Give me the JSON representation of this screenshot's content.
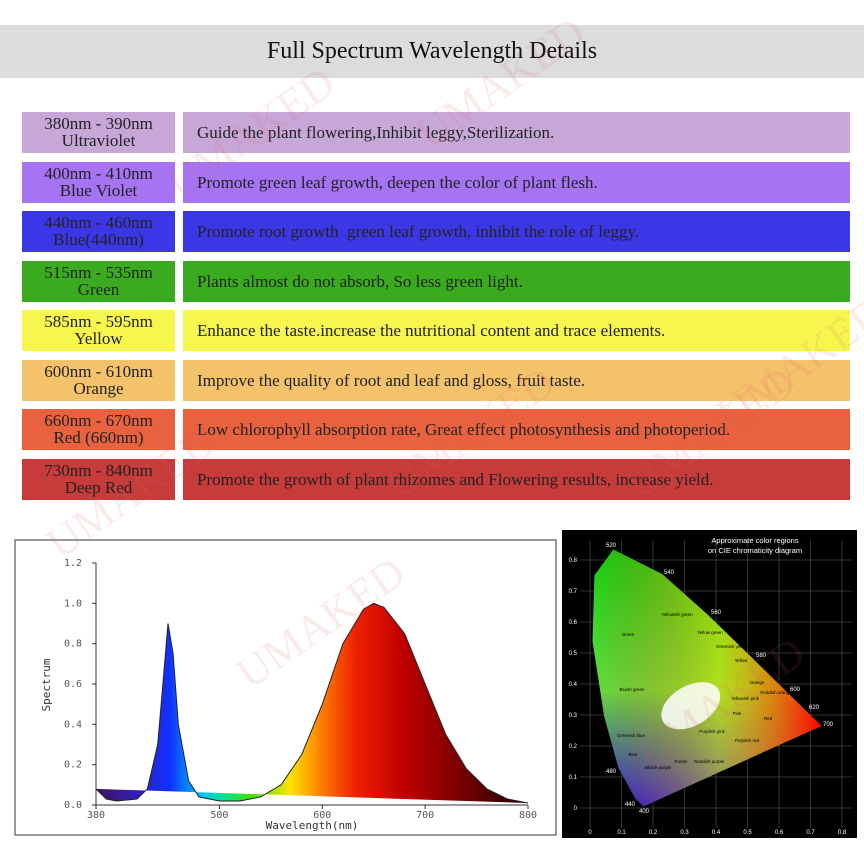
{
  "header": {
    "title": "Full Spectrum Wavelength Details"
  },
  "watermark": "UMAKED",
  "table": {
    "rows": [
      {
        "range": "380nm - 390nm",
        "name": "Ultraviolet",
        "description": "Guide the plant flowering,Inhibit leggy,Sterilization.",
        "color": "#c7a7d7"
      },
      {
        "range": "400nm - 410nm",
        "name": "Blue Violet",
        "description": "Promote green leaf growth, deepen the color of plant flesh.",
        "color": "#a673f2"
      },
      {
        "range": "440nm - 460nm",
        "name": "Blue(440nm)",
        "description": "Promote root growth  green leaf growth, inhibit the role of leggy.",
        "color": "#3c37e6"
      },
      {
        "range": "515nm - 535nm",
        "name": "Green",
        "description": "Plants almost do not absorb, So less green light.",
        "color": "#3aab1f"
      },
      {
        "range": "585nm - 595nm",
        "name": "Yellow",
        "description": "Enhance the taste.increase the nutritional content and trace elements.",
        "color": "#f6f64f"
      },
      {
        "range": "600nm - 610nm",
        "name": "Orange",
        "description": "Improve the quality of root and leaf and gloss, fruit taste.",
        "color": "#f5c26c"
      },
      {
        "range": "660nm - 670nm",
        "name": "Red (660nm)",
        "description": "Low chlorophyll absorption rate, Great effect photosynthesis and photoperiod.",
        "color": "#e8623f"
      },
      {
        "range": "730nm - 840nm",
        "name": "Deep Red",
        "description": "Promote the growth of plant rhizomes and Flowering results, increase yield.",
        "color": "#c83b3b"
      }
    ]
  },
  "chart_data": {
    "type": "line",
    "xlabel": "Wavelength(nm)",
    "ylabel": "Spectrum",
    "x": [
      380,
      390,
      400,
      420,
      430,
      440,
      445,
      450,
      455,
      460,
      470,
      480,
      500,
      520,
      540,
      560,
      580,
      600,
      620,
      640,
      650,
      660,
      680,
      700,
      720,
      740,
      760,
      780,
      800
    ],
    "values": [
      0.08,
      0.03,
      0.02,
      0.03,
      0.08,
      0.3,
      0.6,
      0.9,
      0.75,
      0.4,
      0.12,
      0.04,
      0.02,
      0.02,
      0.04,
      0.1,
      0.25,
      0.5,
      0.8,
      0.97,
      1.0,
      0.98,
      0.85,
      0.6,
      0.35,
      0.18,
      0.08,
      0.03,
      0.01
    ],
    "color": "#222222",
    "xlim": [
      380,
      800
    ],
    "ylim": [
      0,
      1.2
    ],
    "xticks": [
      380,
      500,
      600,
      700,
      800
    ],
    "yticks": [
      {
        "value": 0,
        "label": "0.0"
      },
      0.2,
      0.4,
      0.6,
      0.8,
      {
        "value": 1,
        "label": "1.0"
      },
      1.2
    ]
  },
  "cie": {
    "title_lines": [
      "Approximate color regions",
      "on CIE chromaticity diagram"
    ],
    "xticks": [
      0,
      0.1,
      0.2,
      0.3,
      0.4,
      0.5,
      0.6,
      0.7,
      0.8
    ],
    "yticks": [
      0,
      0.1,
      0.2,
      0.3,
      0.4,
      0.5,
      0.6,
      0.7,
      0.8
    ],
    "wavelengths": [
      "520",
      "540",
      "560",
      "580",
      "600",
      "620",
      "700",
      "480",
      "440",
      "400"
    ],
    "regions": [
      "Green",
      "Yellowish green",
      "Yellow green",
      "Greenish yellow",
      "Yellow",
      "Yellowish pink",
      "Orange",
      "Reddish orange",
      "Red",
      "Pink",
      "Purplish pink",
      "Purplish red",
      "Reddish purple",
      "Purple",
      "Bluish purple",
      "Blue",
      "Greenish blue",
      "Bluish green"
    ]
  }
}
